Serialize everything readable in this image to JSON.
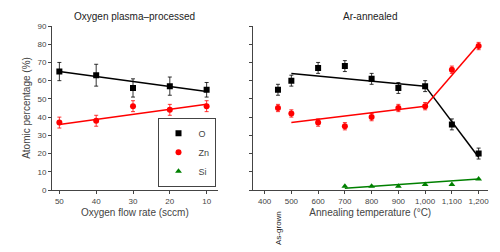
{
  "chart_data": [
    {
      "type": "scatter",
      "title": "Oxygen plasma–processed",
      "xlabel": "Oxygen flow rate (sccm)",
      "ylabel": "Atomic percentage (%)",
      "xlim": [
        52,
        7
      ],
      "xticks": [
        50,
        40,
        30,
        20,
        10
      ],
      "ylim": [
        0,
        90
      ],
      "yticks": [
        0,
        10,
        20,
        30,
        40,
        50,
        60,
        70,
        80,
        90
      ],
      "grid": false,
      "legend": "lower right",
      "series": [
        {
          "name": "O",
          "color": "black",
          "marker": "square",
          "x": [
            50,
            40,
            30,
            20,
            10
          ],
          "values": [
            65,
            63,
            56,
            57,
            55
          ],
          "errors": [
            5,
            6,
            5,
            5,
            4
          ]
        },
        {
          "type": "line",
          "color": "black",
          "x": [
            50,
            10
          ],
          "values": [
            65,
            54
          ]
        },
        {
          "name": "Zn",
          "color": "red",
          "marker": "circle",
          "x": [
            50,
            40,
            30,
            20,
            10
          ],
          "values": [
            37,
            38,
            46,
            44,
            46
          ],
          "errors": [
            3,
            3,
            3,
            3,
            3
          ]
        },
        {
          "type": "line",
          "color": "red",
          "x": [
            50,
            10
          ],
          "values": [
            36,
            47
          ]
        }
      ]
    },
    {
      "type": "scatter",
      "title": "Ar-annealed",
      "xlabel": "Annealing temperature (°C)",
      "xlim": [
        355,
        1235
      ],
      "xticks": [
        400,
        500,
        600,
        700,
        800,
        900,
        {
          "value": 1000,
          "label": "1,000"
        },
        {
          "value": 1100,
          "label": "1,100"
        },
        {
          "value": 1200,
          "label": "1,200"
        }
      ],
      "ylim": [
        0,
        90
      ],
      "yticks": [
        0,
        10,
        20,
        30,
        40,
        50,
        60,
        70,
        80,
        90
      ],
      "grid": false,
      "tick_labels": "x",
      "annotations": [
        {
          "text": "As-grown",
          "x": 450
        }
      ],
      "series": [
        {
          "name": "O",
          "color": "black",
          "marker": "square",
          "x": [
            450,
            500,
            600,
            700,
            800,
            900,
            1000,
            1100,
            1200
          ],
          "values": [
            55,
            60,
            67,
            68,
            61,
            56,
            57,
            36,
            20
          ],
          "errors": [
            3,
            3,
            3,
            3,
            3,
            3,
            3,
            3,
            3
          ]
        },
        {
          "type": "line",
          "color": "black",
          "x": [
            500,
            1000
          ],
          "values": [
            64,
            57
          ]
        },
        {
          "type": "line",
          "color": "black",
          "x": [
            1000,
            1200
          ],
          "values": [
            57,
            18
          ]
        },
        {
          "name": "Zn",
          "color": "red",
          "marker": "circle",
          "x": [
            450,
            500,
            600,
            700,
            800,
            900,
            1000,
            1100,
            1200
          ],
          "values": [
            45,
            42,
            37,
            35,
            40,
            45,
            46,
            66,
            79
          ],
          "errors": [
            2,
            2,
            2,
            2,
            2,
            2,
            2,
            2,
            2
          ]
        },
        {
          "type": "line",
          "color": "red",
          "x": [
            500,
            1000
          ],
          "values": [
            37,
            46
          ]
        },
        {
          "type": "line",
          "color": "red",
          "x": [
            1000,
            1200
          ],
          "values": [
            46,
            80
          ]
        },
        {
          "name": "Si",
          "color": "green",
          "marker": "triangle",
          "x": [
            700,
            800,
            900,
            1000,
            1100,
            1200
          ],
          "values": [
            2,
            2,
            2,
            3,
            3,
            6
          ]
        },
        {
          "type": "line",
          "color": "green",
          "x": [
            700,
            1200
          ],
          "values": [
            1,
            6
          ]
        }
      ]
    }
  ]
}
